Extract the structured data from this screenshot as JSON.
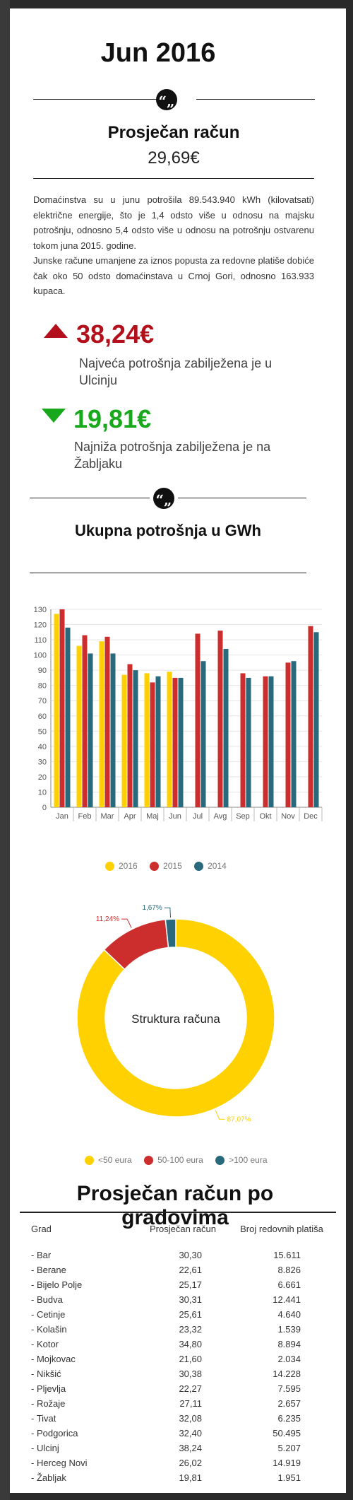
{
  "header": {
    "title": "Jun 2016"
  },
  "avg_bill": {
    "label": "Prosječan račun",
    "value": "29,69€"
  },
  "quote_glyph": "“„",
  "paragraph_1": "Domaćinstva su u junu potrošila 89.543.940 kWh (kilovatsati) električne energije, što je 1,4 odsto više u odnosu na majsku potrošnju, odnosno 5,4 odsto više u odnosu na potrošnju ostvarenu tokom juna 2015. godine.",
  "paragraph_2": "Junske račune umanjene za iznos popusta za redovne platiše dobiće čak oko 50 odsto domaćinstava u Crnoj Gori, odnosno 163.933 kupaca.",
  "max_stat": {
    "value": "38,24€",
    "text": "Najveća potrošnja zabilježena je u Ulcinju",
    "color": "#b3101b"
  },
  "min_stat": {
    "value": "19,81€",
    "text": "Najniža potrošnja zabilježena je na Žabljaku",
    "color": "#17a81b"
  },
  "consumption_title": "Ukupna potrošnja u GWh",
  "chart_data": [
    {
      "type": "bar",
      "categories": [
        "Jan",
        "Feb",
        "Mar",
        "Apr",
        "Maj",
        "Jun",
        "Jul",
        "Avg",
        "Sep",
        "Okt",
        "Nov",
        "Dec"
      ],
      "series": [
        {
          "name": "2016",
          "color": "#ffd100",
          "values": [
            127,
            106,
            109,
            87,
            88,
            89,
            null,
            null,
            null,
            null,
            null,
            null
          ]
        },
        {
          "name": "2015",
          "color": "#cc2d2d",
          "values": [
            130,
            113,
            112,
            94,
            82,
            85,
            114,
            116,
            88,
            86,
            95,
            119
          ]
        },
        {
          "name": "2014",
          "color": "#286a7c",
          "values": [
            118,
            101,
            101,
            90,
            86,
            85,
            96,
            104,
            85,
            86,
            96,
            115
          ]
        }
      ],
      "yticks": [
        0,
        10,
        20,
        30,
        40,
        50,
        60,
        70,
        80,
        90,
        100,
        110,
        120,
        130
      ],
      "ylim": [
        0,
        130
      ]
    },
    {
      "type": "pie",
      "title": "Struktura računa",
      "labels": [
        "<50 eura",
        "50-100 eura",
        ">100 eura"
      ],
      "values": [
        87.07,
        11.24,
        1.67
      ],
      "value_labels": [
        "87,07%",
        "11,24%",
        "1,67%"
      ],
      "colors": [
        "#ffd100",
        "#cc2d2d",
        "#286a7c"
      ]
    }
  ],
  "cities": {
    "title": "Prosječan račun po gradovima",
    "headers": [
      "Grad",
      "Prosječan račun",
      "Broj redovnih platiša"
    ],
    "rows": [
      [
        "- Bar",
        "30,30",
        "15.611"
      ],
      [
        "- Berane",
        "22,61",
        "8.826"
      ],
      [
        "- Bijelo Polje",
        "25,17",
        "6.661"
      ],
      [
        "- Budva",
        "30,31",
        "12.441"
      ],
      [
        "- Cetinje",
        "25,61",
        "4.640"
      ],
      [
        "- Kolašin",
        "23,32",
        "1.539"
      ],
      [
        "- Kotor",
        "34,80",
        "8.894"
      ],
      [
        "- Mojkovac",
        "21,60",
        "2.034"
      ],
      [
        "- Nikšić",
        "30,38",
        "14.228"
      ],
      [
        "- Pljevlja",
        "22,27",
        "7.595"
      ],
      [
        "- Rožaje",
        "27,11",
        "2.657"
      ],
      [
        "- Tivat",
        "32,08",
        "6.235"
      ],
      [
        "- Podgorica",
        "32,40",
        "50.495"
      ],
      [
        "- Ulcinj",
        "38,24",
        "5.207"
      ],
      [
        "- Herceg Novi",
        "26,02",
        "14.919"
      ],
      [
        "- Žabljak",
        "19,81",
        "1.951"
      ]
    ]
  }
}
